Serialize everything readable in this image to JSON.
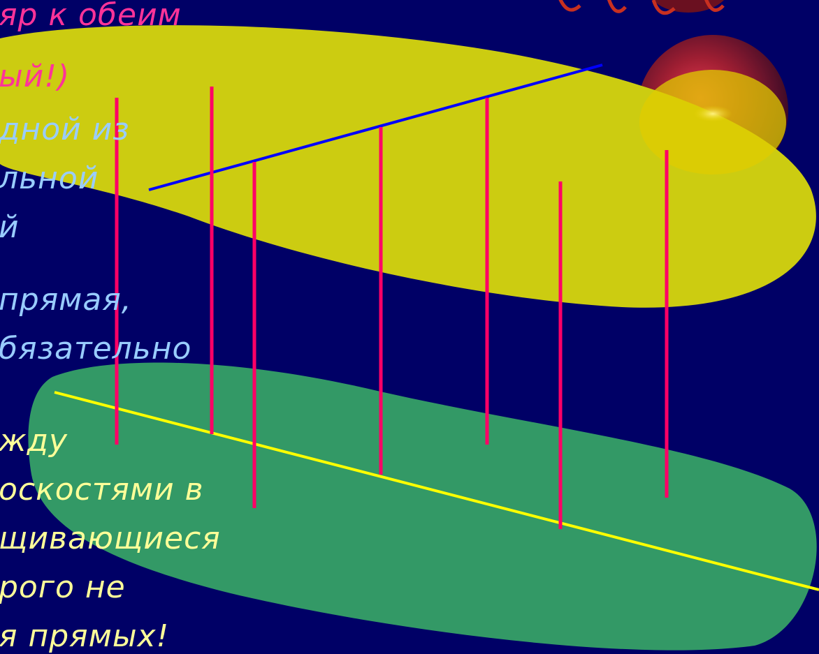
{
  "slide": {
    "lines": [
      {
        "text": "яр к обеим",
        "color": "#FF3399"
      },
      {
        "text": "ый!)",
        "color": "#FF3399"
      },
      {
        "text": "дной из",
        "color": "#99CCFF"
      },
      {
        "text": "льной",
        "color": "#99CCFF"
      },
      {
        "text": "й",
        "color": "#99CCFF"
      },
      {
        "text": "прямая,",
        "color": "#99CCFF"
      },
      {
        "text": "бязательно",
        "color": "#99CCFF"
      },
      {
        "text": "жду",
        "color": "#FFFF99"
      },
      {
        "text": "оскостями в",
        "color": "#FFFF99"
      },
      {
        "text": "щивающиеся",
        "color": "#FFFF99"
      },
      {
        "text": "рого не",
        "color": "#FFFF99"
      },
      {
        "text": "я прямых!",
        "color": "#FFFF99"
      }
    ]
  },
  "colors": {
    "background": "#000066",
    "upper_plane": "#CCCC11",
    "lower_plane": "#339966",
    "upper_line": "#0000FF",
    "lower_line": "#FFFF00",
    "perpendiculars": "#FF0066"
  }
}
